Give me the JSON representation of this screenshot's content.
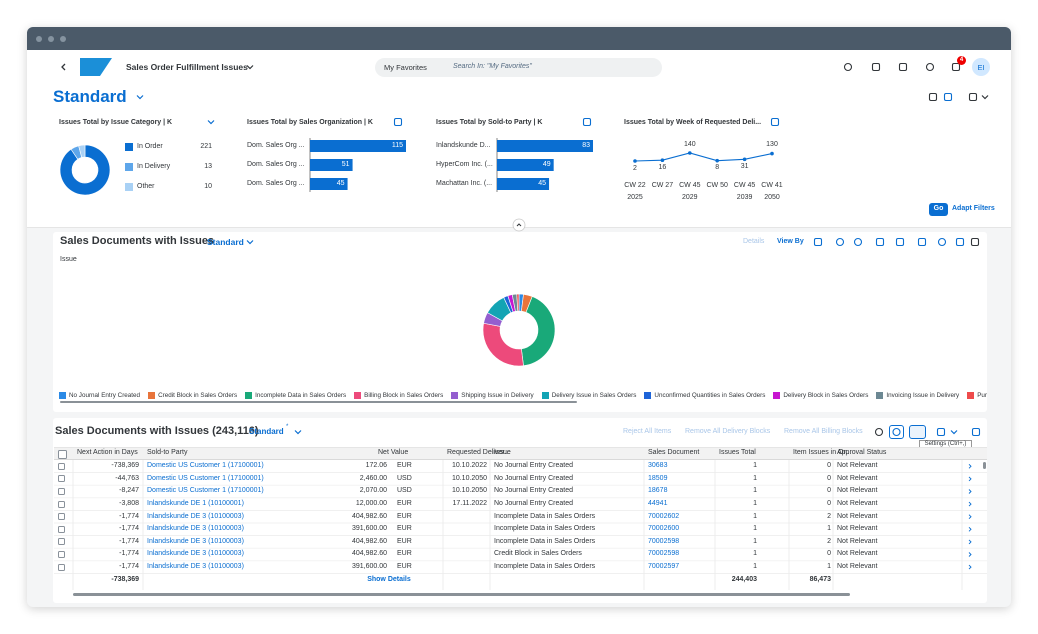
{
  "header": {
    "app_title": "Sales Order Fulfillment Issues",
    "search_scope": "My Favorites",
    "search_placeholder": "Search In: \"My Favorites\"",
    "notification_count": "4",
    "avatar": "EI"
  },
  "variant": "Standard",
  "kpi_cards": [
    {
      "type": "donut",
      "title": "Issues Total by Issue Category | K",
      "categories": [
        "In Order",
        "In Delivery",
        "Other"
      ],
      "values": [
        221,
        13,
        10
      ],
      "colors": [
        "#0a6ed1",
        "#5ea6ea",
        "#a9d1f5"
      ]
    },
    {
      "type": "bar",
      "title": "Issues Total by Sales Organization | K",
      "categories": [
        "Dom. Sales Org ...",
        "Dom. Sales Org ...",
        "Dom. Sales Org ..."
      ],
      "values": [
        115,
        51,
        45
      ],
      "color": "#0a6ed1"
    },
    {
      "type": "bar",
      "title": "Issues Total by Sold-to Party | K",
      "categories": [
        "Inlandskunde D...",
        "HyperCom Inc. (...",
        "Machattan Inc. (..."
      ],
      "values": [
        83,
        49,
        45
      ],
      "color": "#0a6ed1"
    },
    {
      "type": "line",
      "title": "Issues Total by Week of Requested Deli...",
      "weeks": [
        "CW 22",
        "CW 27",
        "CW 45",
        "CW 50",
        "CW 45",
        "CW 41"
      ],
      "years": [
        "2025",
        null,
        "2029",
        null,
        "2039",
        "2050"
      ],
      "values": [
        2,
        16,
        140,
        8,
        31,
        130
      ],
      "color": "#0a6ed1"
    }
  ],
  "filter_bar": {
    "go": "Go",
    "adapt_filters": "Adapt Filters"
  },
  "chart_panel": {
    "title": "Sales Documents with Issues",
    "variant": "Standard",
    "details": "Details",
    "view_by": "View By",
    "axis_label": "Issue",
    "chart": {
      "type": "donut",
      "categories": [
        "No Journal Entry Created",
        "Credit Block in Sales Orders",
        "Incomplete Data in Sales Orders",
        "Billing Block in Sales Orders",
        "Shipping Issue in Delivery",
        "Delivery Issue in Sales Orders",
        "Unconfirmed Quantities in Sales Orders",
        "Delivery Block in Sales Orders",
        "Invoicing Issue in Delivery",
        "Purchasing Issu"
      ],
      "values": [
        2,
        4,
        42,
        30,
        5,
        10,
        2,
        2,
        2,
        1
      ],
      "colors": [
        "#2b8ae6",
        "#e8743b",
        "#19a979",
        "#ed4a7b",
        "#945ecf",
        "#13a4b4",
        "#1d64d8",
        "#c716d0",
        "#6c8893",
        "#ee4b4b"
      ]
    }
  },
  "table_panel": {
    "title": "Sales Documents with Issues (243,116)",
    "variant": "Standard",
    "dirty_marker": "*",
    "actions": [
      "Reject All Items",
      "Remove All Delivery Blocks",
      "Remove All Billing Blocks"
    ],
    "tooltip": "Settings (Ctrl+,)",
    "columns": [
      "Next Action in Days",
      "Sold-to Party",
      "Net Value",
      "Requested Deliver...",
      "Issue",
      "Sales Document",
      "Issues Total",
      "Item Issues in Or...",
      "Approval Status"
    ],
    "rows": [
      [
        "-738,369",
        "Domestic US Customer 1 (17100001)",
        "172.06",
        "EUR",
        "10.10.2022",
        "No Journal Entry Created",
        "30683",
        "1",
        "0",
        "Not Relevant"
      ],
      [
        "-44,763",
        "Domestic US Customer 1 (17100001)",
        "2,460.00",
        "USD",
        "10.10.2050",
        "No Journal Entry Created",
        "18509",
        "1",
        "0",
        "Not Relevant"
      ],
      [
        "-8,247",
        "Domestic US Customer 1 (17100001)",
        "2,070.00",
        "USD",
        "10.10.2050",
        "No Journal Entry Created",
        "18678",
        "1",
        "0",
        "Not Relevant"
      ],
      [
        "-3,808",
        "Inlandskunde DE 1 (10100001)",
        "12,000.00",
        "EUR",
        "17.11.2022",
        "No Journal Entry Created",
        "44941",
        "1",
        "0",
        "Not Relevant"
      ],
      [
        "-1,774",
        "Inlandskunde DE 3 (10100003)",
        "404,982.60",
        "EUR",
        null,
        "Incomplete Data in Sales Orders",
        "70002602",
        "1",
        "2",
        "Not Relevant"
      ],
      [
        "-1,774",
        "Inlandskunde DE 3 (10100003)",
        "391,600.00",
        "EUR",
        null,
        "Incomplete Data in Sales Orders",
        "70002600",
        "1",
        "1",
        "Not Relevant"
      ],
      [
        "-1,774",
        "Inlandskunde DE 3 (10100003)",
        "404,982.60",
        "EUR",
        null,
        "Incomplete Data in Sales Orders",
        "70002598",
        "1",
        "2",
        "Not Relevant"
      ],
      [
        "-1,774",
        "Inlandskunde DE 3 (10100003)",
        "404,982.60",
        "EUR",
        null,
        "Credit Block in Sales Orders",
        "70002598",
        "1",
        "0",
        "Not Relevant"
      ],
      [
        "-1,774",
        "Inlandskunde DE 3 (10100003)",
        "391,600.00",
        "EUR",
        null,
        "Incomplete Data in Sales Orders",
        "70002597",
        "1",
        "1",
        "Not Relevant"
      ]
    ],
    "footer": {
      "next_action_total": "-738,369",
      "show_details": "Show Details",
      "issues_total": "244,403",
      "item_issues_total": "86,473"
    }
  }
}
